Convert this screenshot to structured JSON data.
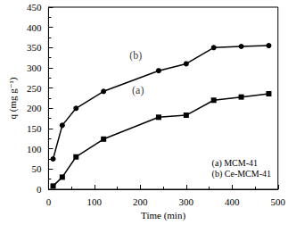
{
  "chart_data": {
    "type": "line",
    "x_label": "Time (min)",
    "y_label": "q (mg g⁻¹)",
    "xlim": [
      0,
      500
    ],
    "xticks": [
      0,
      100,
      200,
      300,
      400,
      500
    ],
    "ylim": [
      0,
      450
    ],
    "yticks": [
      0,
      50,
      100,
      150,
      200,
      250,
      300,
      350,
      400,
      450
    ],
    "grid": false,
    "legend": "lower right",
    "series": [
      {
        "name": "(a) MCM-41",
        "color": "#000000",
        "marker": "square",
        "line_style": "solid",
        "x": [
          10,
          30,
          60,
          120,
          240,
          300,
          360,
          420,
          480
        ],
        "values": [
          8,
          30,
          80,
          124,
          178,
          183,
          220,
          228,
          236
        ]
      },
      {
        "name": "(b) Ce-MCM-41",
        "color": "#000000",
        "marker": "circle",
        "line_style": "solid",
        "x": [
          10,
          30,
          60,
          120,
          240,
          300,
          360,
          420,
          480
        ],
        "values": [
          75,
          158,
          200,
          242,
          293,
          310,
          350,
          353,
          355
        ]
      }
    ],
    "annotations": [
      {
        "text": "(b)",
        "x": 190,
        "y": 330
      },
      {
        "text": "(a)",
        "x": 195,
        "y": 245
      }
    ]
  }
}
